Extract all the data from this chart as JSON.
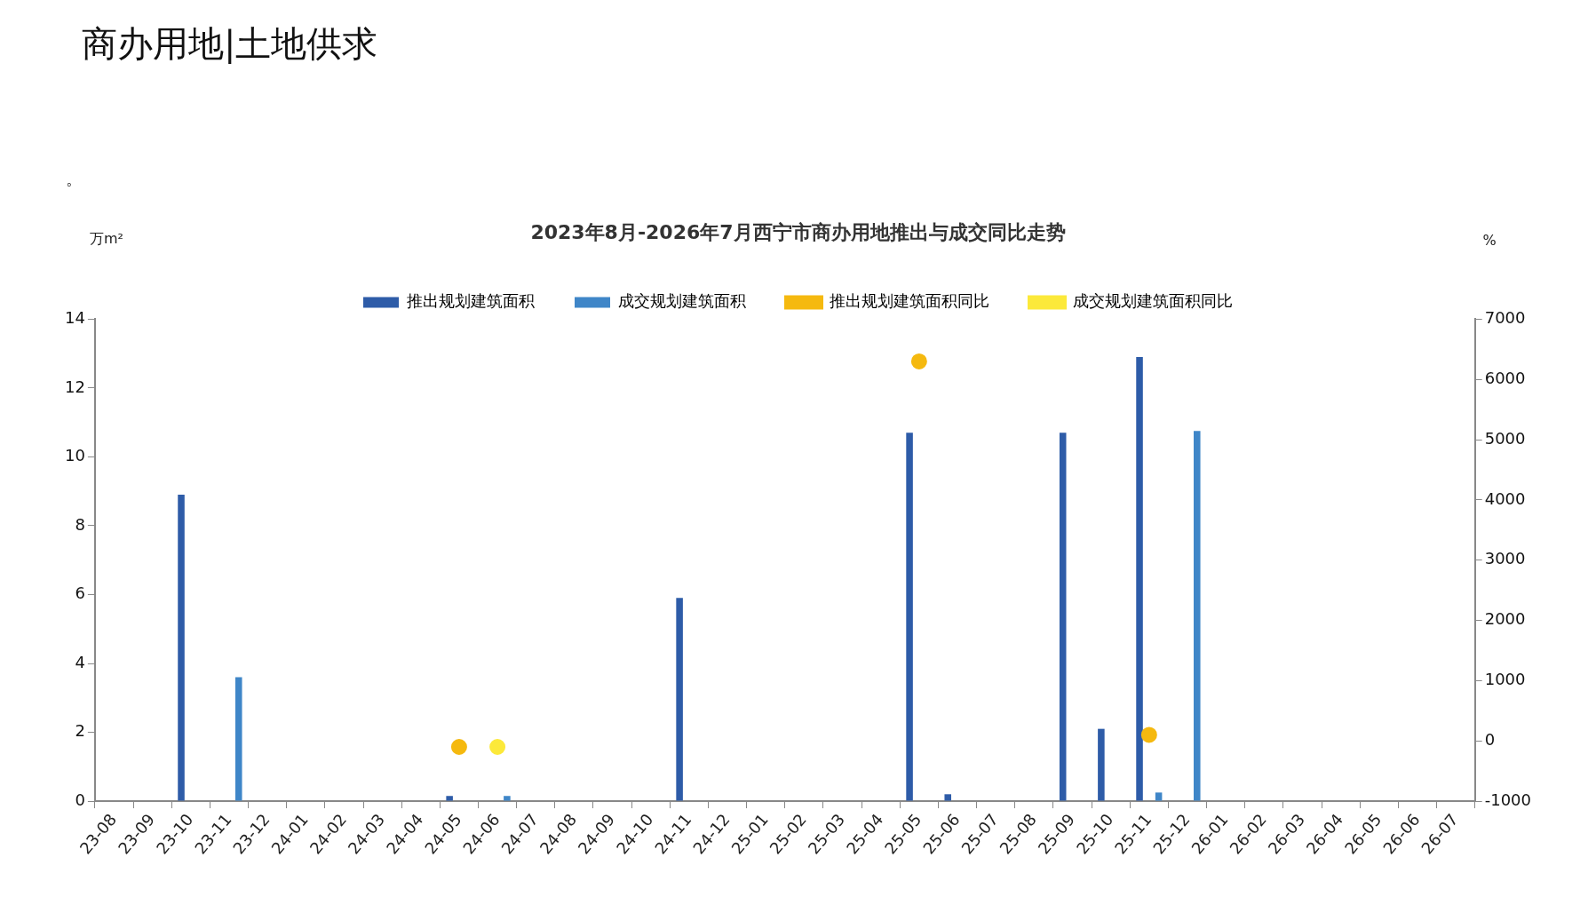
{
  "chart_data": {
    "type": "bar",
    "title": "2023年8月-2026年7月西宁市商办用地推出与成交同比走势",
    "ylabel": "万m²",
    "y2label": "%",
    "annotations": [
      "商办用地|土地供求",
      "。"
    ],
    "categories": [
      "23-08",
      "23-09",
      "23-10",
      "23-11",
      "23-12",
      "24-01",
      "24-02",
      "24-03",
      "24-04",
      "24-05",
      "24-06",
      "24-07",
      "24-08",
      "24-09",
      "24-10",
      "24-11",
      "24-12",
      "25-01",
      "25-02",
      "25-03",
      "25-04",
      "25-05",
      "25-06",
      "25-07",
      "25-08",
      "25-09",
      "25-10",
      "25-11",
      "25-12",
      "26-01",
      "26-02",
      "26-03",
      "26-04",
      "26-05",
      "26-06",
      "26-07"
    ],
    "series": [
      {
        "name": "推出规划建筑面积",
        "color": "#2e5ca8",
        "values": [
          0,
          0,
          8.9,
          0,
          0,
          0,
          0,
          0,
          0,
          0.15,
          0,
          0,
          0,
          0,
          0,
          5.9,
          0,
          0,
          0,
          0,
          0,
          10.7,
          0.2,
          0,
          0,
          10.7,
          2.1,
          12.9,
          0,
          0,
          0,
          0,
          0,
          0,
          0,
          0
        ]
      },
      {
        "name": "成交规划建筑面积",
        "color": "#3f86c8",
        "values": [
          0,
          0,
          0,
          3.6,
          0,
          0,
          0,
          0,
          0,
          0,
          0.15,
          0,
          0,
          0,
          0,
          0,
          0,
          0,
          0,
          0,
          0,
          0,
          0,
          0,
          0,
          0,
          0,
          0.25,
          10.75,
          0,
          0,
          0,
          0,
          0,
          0,
          0
        ]
      },
      {
        "name": "推出规划建筑面积同比",
        "type": "scatter",
        "axis": "y2",
        "color": "#f5b90f",
        "values": [
          null,
          null,
          null,
          null,
          null,
          null,
          null,
          null,
          null,
          -100,
          null,
          null,
          null,
          null,
          null,
          null,
          null,
          null,
          null,
          null,
          null,
          6300,
          null,
          null,
          null,
          null,
          null,
          100,
          null,
          null,
          null,
          null,
          null,
          null,
          null,
          null
        ]
      },
      {
        "name": "成交规划建筑面积同比",
        "type": "scatter",
        "axis": "y2",
        "color": "#fce93a",
        "values": [
          null,
          null,
          null,
          null,
          null,
          null,
          null,
          null,
          null,
          null,
          -100,
          null,
          null,
          null,
          null,
          null,
          null,
          null,
          null,
          null,
          null,
          null,
          null,
          null,
          null,
          null,
          null,
          null,
          null,
          null,
          null,
          null,
          null,
          null,
          null,
          null
        ]
      }
    ],
    "ylim": [
      0,
      14
    ],
    "yticks": [
      0,
      2,
      4,
      6,
      8,
      10,
      12,
      14
    ],
    "y2lim": [
      -1000,
      7000
    ],
    "y2ticks": [
      -1000,
      0,
      1000,
      2000,
      3000,
      4000,
      5000,
      6000,
      7000
    ],
    "grid": false,
    "legend": "top",
    "marker": "circle"
  }
}
